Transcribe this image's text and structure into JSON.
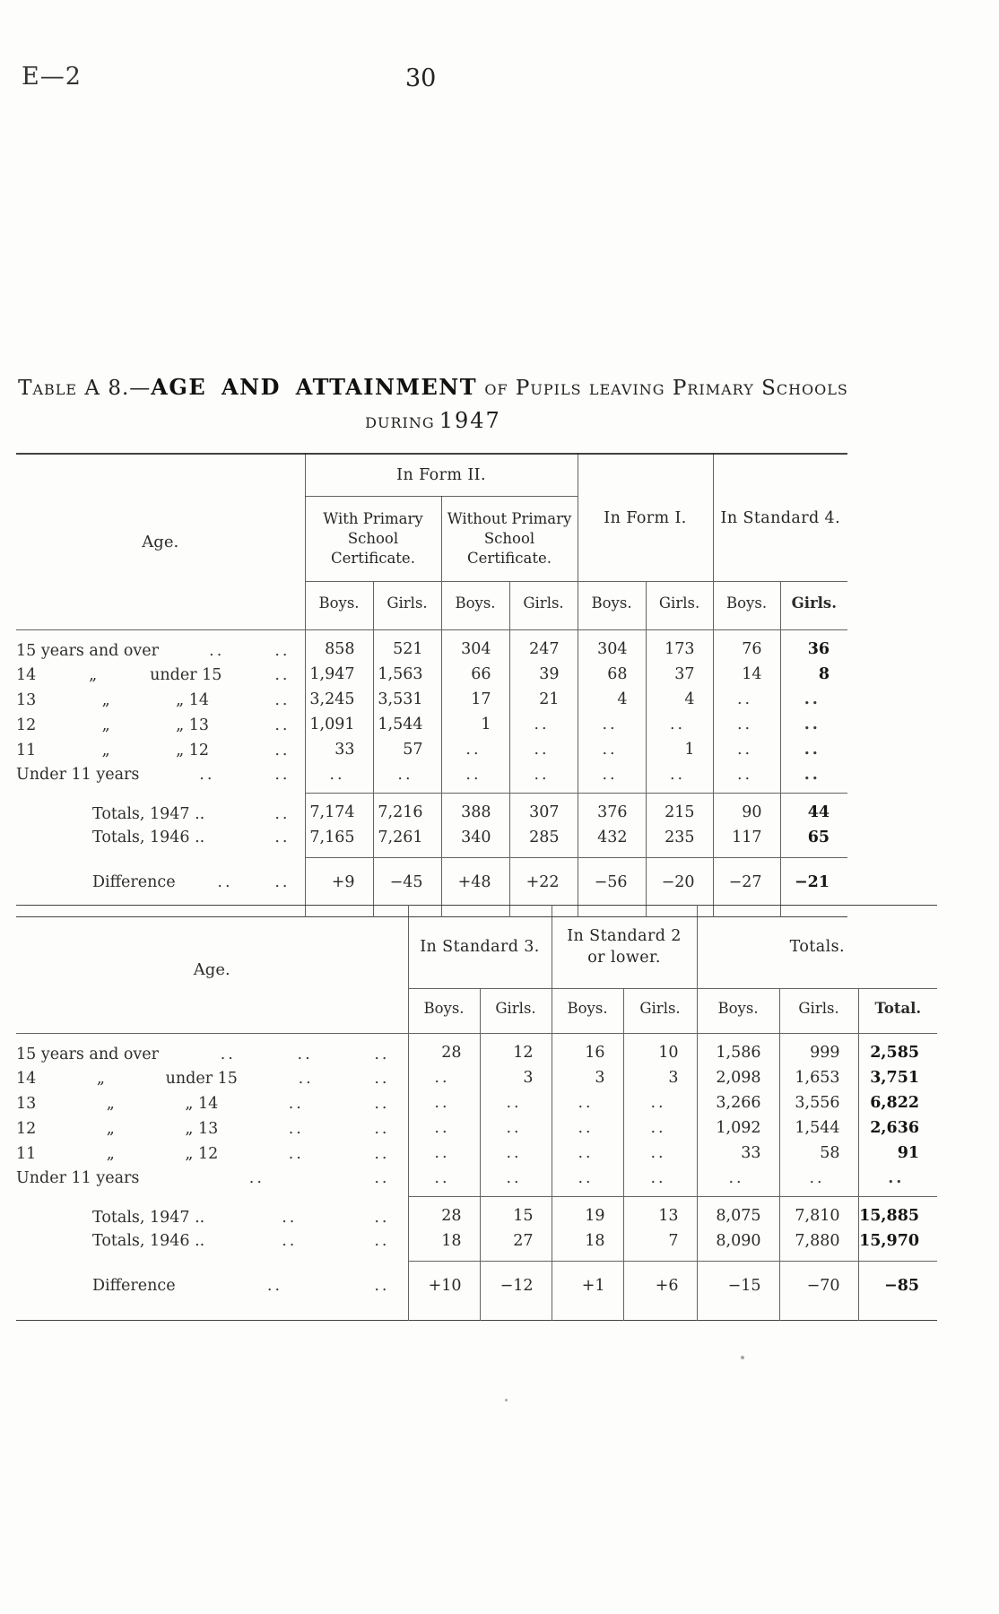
{
  "colors": {
    "paper": "#fdfdfb",
    "ink": "#2a2a2a",
    "rule": "#4a4a4a"
  },
  "page": {
    "doc_code": "E—2",
    "page_number": "30"
  },
  "title": {
    "part1": "Table A 8.—",
    "part2": "AGE AND ATTAINMENT",
    "part3": " of Pupils leaving Primary Schools",
    "line2_word": "during",
    "line2_year": "1947"
  },
  "table1": {
    "age_header": "Age.",
    "groups": [
      {
        "label": "In Form II."
      },
      {
        "label": "In Form I."
      },
      {
        "label": "In Standard 4."
      }
    ],
    "subgroups": [
      {
        "label": "With Primary School Certificate."
      },
      {
        "label": "Without Primary School Certificate."
      }
    ],
    "col_headers": [
      "Boys.",
      "Girls.",
      "Boys.",
      "Girls.",
      "Boys.",
      "Girls.",
      "Boys.",
      "Girls."
    ],
    "rows": [
      {
        "kind": "data-row",
        "parts": [
          "15 years and over",
          "..",
          ".."
        ],
        "values": [
          "858",
          "521",
          "304",
          "247",
          "304",
          "173",
          "76",
          "36"
        ]
      },
      {
        "kind": "data-row",
        "parts": [
          "14",
          "„",
          "under 15",
          ".."
        ],
        "values": [
          "1,947",
          "1,563",
          "66",
          "39",
          "68",
          "37",
          "14",
          "8"
        ]
      },
      {
        "kind": "data-row",
        "parts": [
          "13",
          "„",
          "„ 14",
          ".."
        ],
        "values": [
          "3,245",
          "3,531",
          "17",
          "21",
          "4",
          "4",
          "..",
          ".."
        ]
      },
      {
        "kind": "data-row",
        "parts": [
          "12",
          "„",
          "„ 13",
          ".."
        ],
        "values": [
          "1,091",
          "1,544",
          "1",
          "..",
          "..",
          "..",
          "..",
          ".."
        ]
      },
      {
        "kind": "data-row",
        "parts": [
          "11",
          "„",
          "„ 12",
          ".."
        ],
        "values": [
          "33",
          "57",
          "..",
          "..",
          "..",
          "1",
          "..",
          ".."
        ]
      },
      {
        "kind": "data-row",
        "parts": [
          "Under 11 years",
          "..",
          ".."
        ],
        "values": [
          "..",
          "..",
          "..",
          "..",
          "..",
          "..",
          "..",
          ".."
        ]
      }
    ],
    "totals_rows": [
      {
        "kind": "totals-row",
        "indent": true,
        "parts": [
          "Totals, 1947 ..",
          ".."
        ],
        "values": [
          "7,174",
          "7,216",
          "388",
          "307",
          "376",
          "215",
          "90",
          "44"
        ]
      },
      {
        "kind": "totals-row",
        "indent": true,
        "parts": [
          "Totals, 1946 ..",
          ".."
        ],
        "values": [
          "7,165",
          "7,261",
          "340",
          "285",
          "432",
          "235",
          "117",
          "65"
        ]
      }
    ],
    "difference_rows": [
      {
        "kind": "difference-row",
        "indent": true,
        "parts": [
          "Difference",
          "..",
          ".."
        ],
        "values": [
          "+9",
          "−45",
          "+48",
          "+22",
          "−56",
          "−20",
          "−27",
          "−21"
        ]
      }
    ]
  },
  "table2": {
    "age_header": "Age.",
    "groups": [
      {
        "label": "In Standard 3."
      },
      {
        "label": "In Standard 2 or lower."
      },
      {
        "label": "Totals."
      }
    ],
    "col_headers": [
      "Boys.",
      "Girls.",
      "Boys.",
      "Girls.",
      "Boys.",
      "Girls.",
      "Total."
    ],
    "rows": [
      {
        "kind": "data-row",
        "parts": [
          "15 years and over",
          "..",
          "..",
          ".."
        ],
        "values": [
          "28",
          "12",
          "16",
          "10",
          "1,586",
          "999",
          "2,585"
        ]
      },
      {
        "kind": "data-row",
        "parts": [
          "14",
          "„",
          "under 15",
          "..",
          ".."
        ],
        "values": [
          "..",
          "3",
          "3",
          "3",
          "2,098",
          "1,653",
          "3,751"
        ]
      },
      {
        "kind": "data-row",
        "parts": [
          "13",
          "„",
          "„ 14",
          "..",
          ".."
        ],
        "values": [
          "..",
          "..",
          "..",
          "..",
          "3,266",
          "3,556",
          "6,822"
        ]
      },
      {
        "kind": "data-row",
        "parts": [
          "12",
          "„",
          "„ 13",
          "..",
          ".."
        ],
        "values": [
          "..",
          "..",
          "..",
          "..",
          "1,092",
          "1,544",
          "2,636"
        ]
      },
      {
        "kind": "data-row",
        "parts": [
          "11",
          "„",
          "„ 12",
          "..",
          ".."
        ],
        "values": [
          "..",
          "..",
          "..",
          "..",
          "33",
          "58",
          "91"
        ]
      },
      {
        "kind": "data-row",
        "parts": [
          "Under 11 years",
          "..",
          ".."
        ],
        "values": [
          "..",
          "..",
          "..",
          "..",
          "..",
          "..",
          ".."
        ]
      }
    ],
    "totals_rows": [
      {
        "kind": "totals-row",
        "indent": true,
        "parts": [
          "Totals, 1947 ..",
          "..",
          ".."
        ],
        "values": [
          "28",
          "15",
          "19",
          "13",
          "8,075",
          "7,810",
          "15,885"
        ]
      },
      {
        "kind": "totals-row",
        "indent": true,
        "parts": [
          "Totals, 1946 ..",
          "..",
          ".."
        ],
        "values": [
          "18",
          "27",
          "18",
          "7",
          "8,090",
          "7,880",
          "15,970"
        ]
      }
    ],
    "difference_rows": [
      {
        "kind": "difference-row",
        "indent": true,
        "parts": [
          "Difference",
          "..",
          ".."
        ],
        "values": [
          "+10",
          "−12",
          "+1",
          "+6",
          "−15",
          "−70",
          "−85"
        ]
      }
    ]
  }
}
